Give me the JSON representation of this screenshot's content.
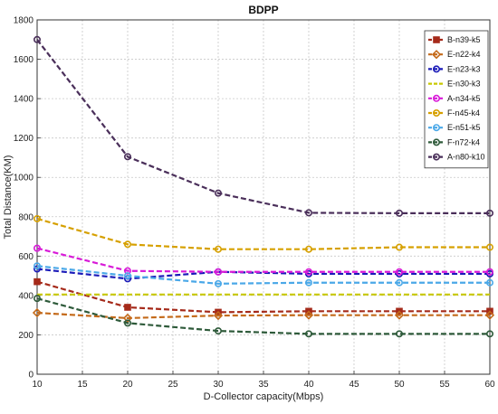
{
  "chart_data": {
    "type": "line",
    "title": "BDPP",
    "xlabel": "D-Collector capacity(Mbps)",
    "ylabel": "Total Distance(KM)",
    "xlim": [
      10,
      60
    ],
    "ylim": [
      0,
      1800
    ],
    "xticks": [
      10,
      15,
      20,
      25,
      30,
      35,
      40,
      45,
      50,
      55,
      60
    ],
    "yticks": [
      0,
      200,
      400,
      600,
      800,
      1000,
      1200,
      1400,
      1600,
      1800
    ],
    "grid": true,
    "legend_position": "top-right",
    "x": [
      10,
      20,
      30,
      40,
      50,
      60
    ],
    "series": [
      {
        "name": "B-n39-k5",
        "color": "#a52a1a",
        "marker": "square",
        "values": [
          470,
          340,
          315,
          320,
          320,
          320
        ]
      },
      {
        "name": "E-n22-k4",
        "color": "#c46a1a",
        "marker": "diamond",
        "values": [
          312,
          285,
          298,
          300,
          300,
          300
        ]
      },
      {
        "name": "E-n23-k3",
        "color": "#1a1ab8",
        "marker": "circle",
        "values": [
          535,
          485,
          520,
          510,
          510,
          510
        ]
      },
      {
        "name": "E-n30-k3",
        "color": "#c8c800",
        "marker": "none",
        "values": [
          405,
          405,
          405,
          405,
          405,
          405
        ]
      },
      {
        "name": "A-n34-k5",
        "color": "#d81ad8",
        "marker": "circle",
        "values": [
          640,
          525,
          520,
          520,
          520,
          520
        ]
      },
      {
        "name": "F-n45-k4",
        "color": "#d6a000",
        "marker": "circle",
        "values": [
          790,
          660,
          635,
          635,
          645,
          645
        ]
      },
      {
        "name": "E-n51-k5",
        "color": "#4aa8e8",
        "marker": "circle",
        "values": [
          550,
          500,
          460,
          465,
          465,
          465
        ]
      },
      {
        "name": "F-n72-k4",
        "color": "#2e5a3a",
        "marker": "circle",
        "values": [
          385,
          260,
          220,
          205,
          205,
          205
        ]
      },
      {
        "name": "A-n80-k10",
        "color": "#4a2f5a",
        "marker": "circle",
        "values": [
          1700,
          1105,
          920,
          820,
          818,
          818
        ]
      }
    ]
  }
}
